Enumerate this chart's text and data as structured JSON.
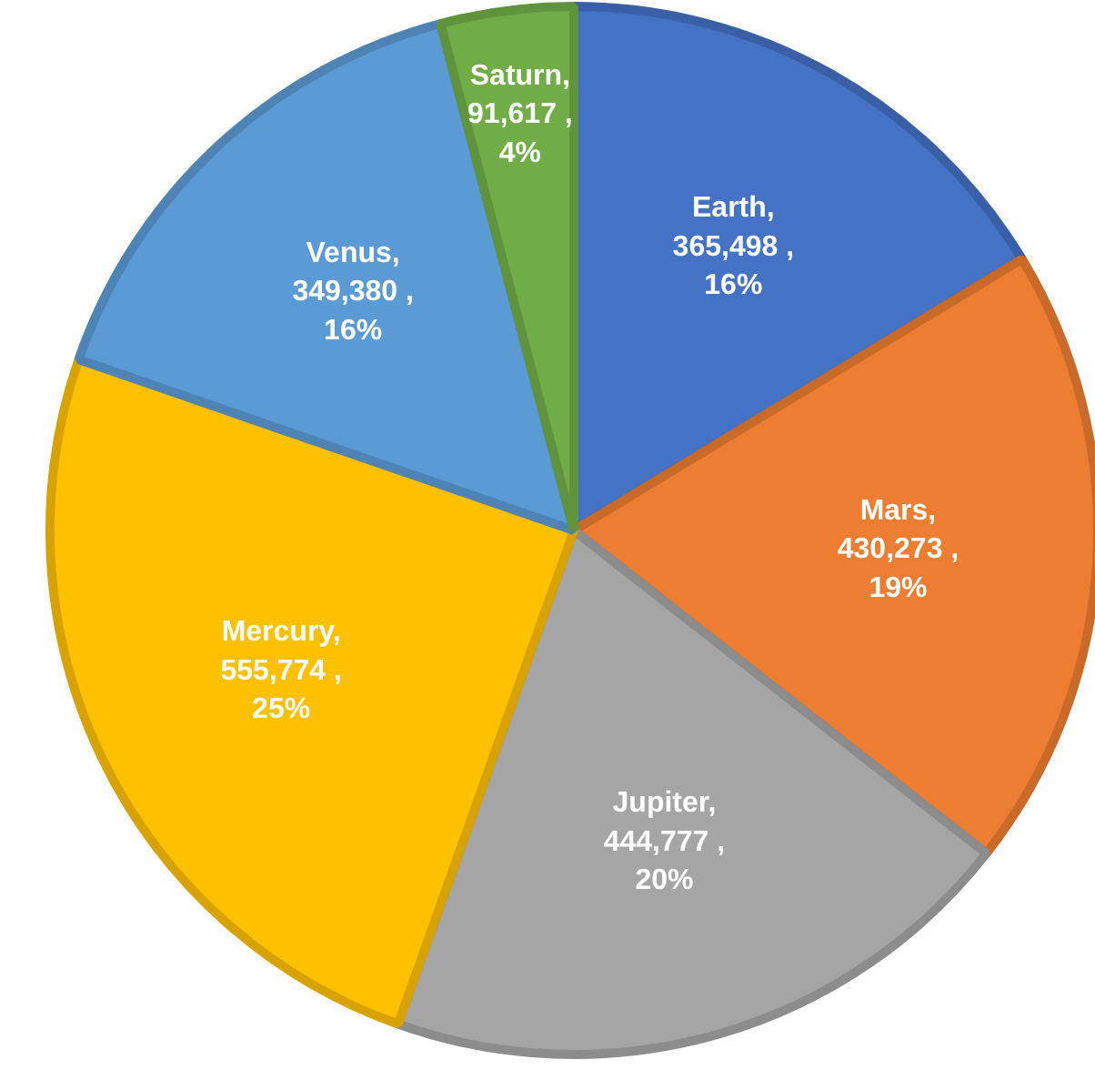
{
  "chart_data": {
    "type": "pie",
    "categories": [
      "Earth",
      "Mars",
      "Jupiter",
      "Mercury",
      "Venus",
      "Saturn"
    ],
    "values": [
      365498,
      430273,
      444777,
      555774,
      349380,
      91617
    ],
    "colors": [
      "#4472c4",
      "#ed7d31",
      "#a5a5a5",
      "#ffc000",
      "#5b9bd5",
      "#70ad47"
    ],
    "value_labels": [
      ",\n365,498 ,\n16%",
      ",\n430,273 ,\n19%",
      ",\n444,777 ,\n20%",
      ",\n555,774 ,\n25%",
      ",\n349,380 ,\n16%",
      ",\n91,617 ,\n4%"
    ]
  }
}
